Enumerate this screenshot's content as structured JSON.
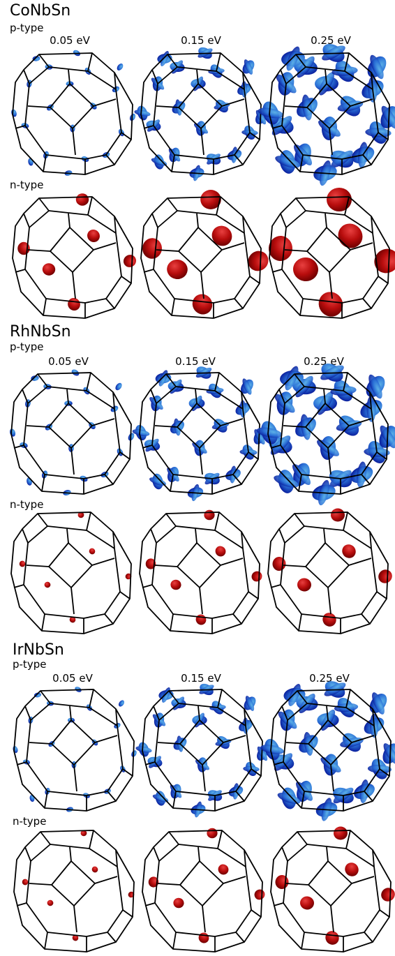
{
  "energies": [
    "0.05 eV",
    "0.15 eV",
    "0.25 eV"
  ],
  "colors": {
    "p_type_surface": "#2a6fd6",
    "p_type_dark": "#0a1f9e",
    "p_type_light": "#5fb4e8",
    "n_type_surface": "#b80d0d",
    "n_type_dark": "#6e0000",
    "n_type_light": "#e84040",
    "edges": "#000000"
  },
  "shape": "truncated-octahedron Brillouin zone",
  "compounds": [
    {
      "name": "CoNbSn",
      "p_label": "p-type",
      "n_label": "n-type",
      "p_sizes": [
        0.18,
        0.55,
        1.0
      ],
      "n_sizes": [
        0.45,
        0.8,
        1.0
      ]
    },
    {
      "name": "RhNbSn",
      "p_label": "p-type",
      "n_label": "n-type",
      "p_sizes": [
        0.2,
        0.6,
        1.0
      ],
      "n_sizes": [
        0.15,
        0.35,
        0.5
      ]
    },
    {
      "name": "IrNbSn",
      "p_label": "p-type",
      "n_label": "n-type",
      "p_sizes": [
        0.15,
        0.55,
        0.9
      ],
      "n_sizes": [
        0.15,
        0.35,
        0.5
      ]
    }
  ]
}
